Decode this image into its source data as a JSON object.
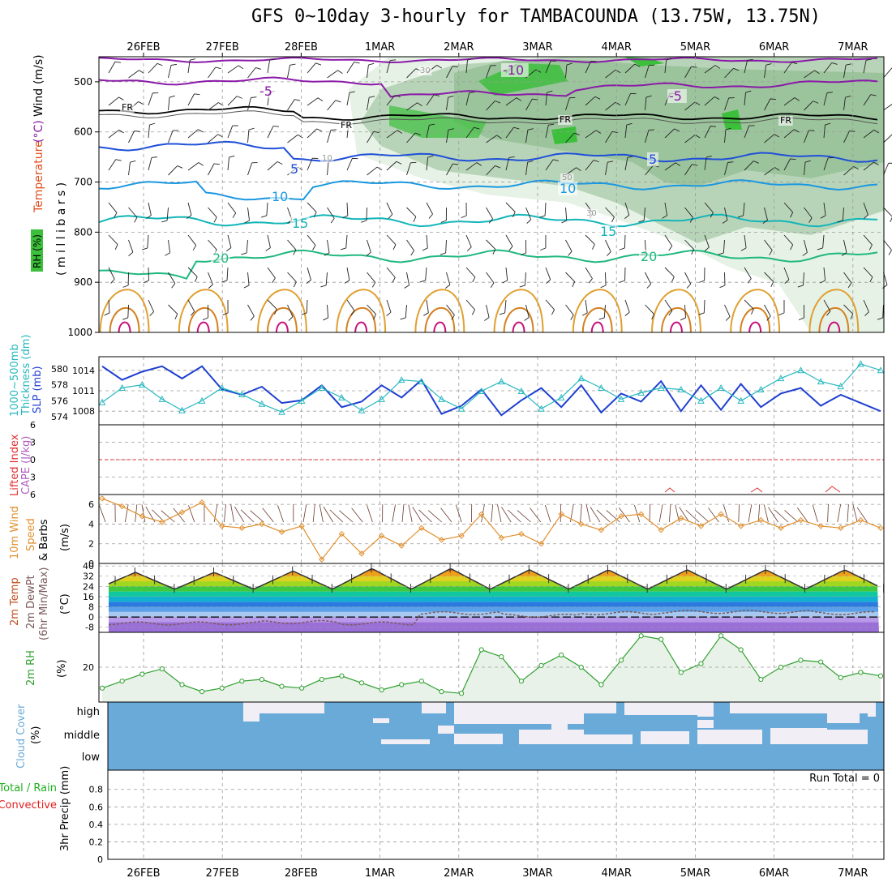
{
  "title": "GFS 0~10day 3-hourly for TAMBACOUNDA (13.75W, 13.75N)",
  "colors": {
    "frame": "#000000",
    "grid": "#9a9a9a",
    "temp_neg": "#8a1aa8",
    "temp_fr": "#000000",
    "temp_5": "#1f4fd8",
    "temp_10": "#1a98e0",
    "temp_15": "#12b5b8",
    "temp_20": "#20b880",
    "temp_warm": "#e0a030",
    "temp_hot": "#c8107a",
    "rh_light": "#e6f2e6",
    "rh_mid": "#b8d4b8",
    "rh_dark": "#9cc49c",
    "rh_green": "#3cc03c",
    "slp": "#1f3fd0",
    "thickness": "#28b8c0",
    "lifted": "#e03030",
    "cape": "#b060c0",
    "wind10": "#e09030",
    "barb": "#6a3a2a",
    "dewpt": "#7a5a5a",
    "rh2m": "#30a030",
    "rh2m_fill": "#e8f2e8",
    "cloud": "#6aaad8",
    "cloud_clear": "#f2eef6",
    "precip_total": "#20b020",
    "precip_conv": "#e02020"
  },
  "dates": [
    "26FEB",
    "27FEB",
    "28FEB",
    "1MAR",
    "2MAR",
    "3MAR",
    "4MAR",
    "5MAR",
    "6MAR",
    "7MAR"
  ],
  "panels": {
    "upper": {
      "labels": {
        "rh": "RH (%)",
        "temperature": "Temperature",
        "temp_unit": "(°C)",
        "wind": "Wind",
        "wind_unit": "(m/s)",
        "pressure": "( m i l l i b a r s )"
      },
      "y_ticks": [
        "500",
        "600",
        "700",
        "800",
        "900",
        "1000"
      ],
      "contour_labels": [
        "-10",
        "-5",
        "-5",
        "FR",
        "FR",
        "FR",
        "FR",
        "5",
        "5",
        "10",
        "10",
        "15",
        "15",
        "20",
        "20",
        "30",
        "30",
        "50",
        "10"
      ]
    },
    "slp": {
      "labels": {
        "thickness": "Thickness (dm)",
        "thickness_title": "1000~500mb",
        "slp": "SLP (mb)"
      },
      "thickness_ticks": [
        "580",
        "578",
        "576",
        "574"
      ],
      "slp_ticks": [
        "1014",
        "1011",
        "1008"
      ]
    },
    "stability": {
      "labels": {
        "lifted": "Lifted Index",
        "cape": "CAPE (J/kg)"
      },
      "y_ticks": [
        "6",
        "3",
        "0",
        "-3",
        "-6"
      ]
    },
    "wind10": {
      "labels": {
        "title": "10m Wind",
        "speed": "Speed",
        "barbs": "& Barbs",
        "unit": "(m/s)"
      },
      "y_ticks": [
        "6",
        "4",
        "2",
        "0"
      ]
    },
    "temp2m": {
      "labels": {
        "temp": "2m Temp",
        "dewpt": "2m DewPt",
        "minmax": "(6hr Min/Max)",
        "unit": "(°C)"
      },
      "y_ticks": [
        "40",
        "32",
        "24",
        "16",
        "8",
        "0",
        "-8"
      ]
    },
    "rh2m": {
      "labels": {
        "title": "2m RH",
        "unit": "(%)"
      },
      "y_ticks": [
        "20"
      ]
    },
    "cloud": {
      "labels": {
        "title": "Cloud Cover",
        "unit": "(%)"
      },
      "levels": [
        "high",
        "middle",
        "low"
      ]
    },
    "precip": {
      "labels": {
        "total": "Total / Rain",
        "convective": "Convective",
        "axis": "3hr Precip (mm)"
      },
      "y_ticks": [
        "0.8",
        "0.6",
        "0.4",
        "0.2",
        "0"
      ],
      "run_total": "Run Total = 0"
    }
  },
  "chart_data": [
    {
      "type": "line",
      "panel": "sea level pressure and 1000-500mb thickness",
      "x": [
        "25FEB 12Z",
        "25FEB 18Z",
        "26FEB 00Z",
        "26FEB 06Z",
        "26FEB 12Z",
        "26FEB 18Z",
        "27FEB 00Z",
        "27FEB 06Z",
        "27FEB 12Z",
        "27FEB 18Z",
        "28FEB 00Z",
        "28FEB 06Z",
        "28FEB 12Z",
        "28FEB 18Z",
        "1MAR 00Z",
        "1MAR 06Z",
        "1MAR 12Z",
        "1MAR 18Z",
        "2MAR 00Z",
        "2MAR 06Z",
        "2MAR 12Z",
        "2MAR 18Z",
        "3MAR 00Z",
        "3MAR 06Z",
        "3MAR 12Z",
        "3MAR 18Z",
        "4MAR 00Z",
        "4MAR 06Z",
        "4MAR 12Z",
        "4MAR 18Z",
        "5MAR 00Z",
        "5MAR 06Z",
        "5MAR 12Z",
        "5MAR 18Z",
        "6MAR 00Z",
        "6MAR 06Z",
        "6MAR 12Z",
        "6MAR 18Z",
        "7MAR 00Z",
        "7MAR 06Z"
      ],
      "series": [
        {
          "name": "SLP (mb)",
          "values": [
            1014.6,
            1012.6,
            1013.8,
            1014.6,
            1012.8,
            1014.6,
            1011.2,
            1010.4,
            1011.6,
            1009.2,
            1009.6,
            1011.8,
            1008.6,
            1009.4,
            1011.8,
            1010.0,
            1012.6,
            1007.6,
            1008.8,
            1011.2,
            1007.4,
            1009.6,
            1011.4,
            1008.6,
            1011.8,
            1007.8,
            1010.6,
            1009.4,
            1012.4,
            1008.0,
            1011.8,
            1008.2,
            1012.0,
            1008.6,
            1010.6,
            1011.4,
            1008.8,
            1010.4,
            1009.2,
            1008.0
          ]
        },
        {
          "name": "Thickness (dm)",
          "values": [
            575.8,
            577.6,
            578.0,
            576.2,
            574.8,
            576.0,
            577.6,
            576.8,
            575.6,
            574.6,
            576.0,
            577.6,
            576.4,
            574.8,
            576.2,
            578.6,
            578.4,
            576.2,
            575.0,
            577.2,
            578.4,
            577.2,
            575.0,
            576.4,
            578.8,
            577.6,
            576.2,
            577.0,
            577.6,
            577.4,
            576.0,
            577.6,
            576.0,
            577.4,
            578.8,
            579.8,
            578.4,
            577.8,
            580.6,
            579.8
          ]
        }
      ],
      "ylim": [
        1006,
        1016
      ]
    },
    {
      "type": "line",
      "panel": "10m wind speed",
      "x": [
        "25FEB 12Z",
        "25FEB 18Z",
        "26FEB 00Z",
        "26FEB 06Z",
        "26FEB 12Z",
        "26FEB 18Z",
        "27FEB 00Z",
        "27FEB 06Z",
        "27FEB 12Z",
        "27FEB 18Z",
        "28FEB 00Z",
        "28FEB 06Z",
        "28FEB 12Z",
        "28FEB 18Z",
        "1MAR 00Z",
        "1MAR 06Z",
        "1MAR 12Z",
        "1MAR 18Z",
        "2MAR 00Z",
        "2MAR 06Z",
        "2MAR 12Z",
        "2MAR 18Z",
        "3MAR 00Z",
        "3MAR 06Z",
        "3MAR 12Z",
        "3MAR 18Z",
        "4MAR 00Z",
        "4MAR 06Z",
        "4MAR 12Z",
        "4MAR 18Z",
        "5MAR 00Z",
        "5MAR 06Z",
        "5MAR 12Z",
        "5MAR 18Z",
        "6MAR 00Z",
        "6MAR 06Z",
        "6MAR 12Z",
        "6MAR 18Z",
        "7MAR 00Z",
        "7MAR 06Z"
      ],
      "series": [
        {
          "name": "Speed",
          "values": [
            6.6,
            5.8,
            4.8,
            4.2,
            5.2,
            6.2,
            3.8,
            3.6,
            4.0,
            3.2,
            3.8,
            0.4,
            3.0,
            1.0,
            2.8,
            1.8,
            3.6,
            2.4,
            2.8,
            5.0,
            2.6,
            3.0,
            2.0,
            5.0,
            4.0,
            3.4,
            4.8,
            5.0,
            3.4,
            4.6,
            3.8,
            5.0,
            3.8,
            4.4,
            3.6,
            4.4,
            3.8,
            3.6,
            4.4,
            3.6
          ]
        }
      ],
      "ylim": [
        0,
        7
      ]
    },
    {
      "type": "line",
      "panel": "2m temperature",
      "x": [
        "26FEB",
        "27FEB",
        "28FEB",
        "1MAR",
        "2MAR",
        "3MAR",
        "4MAR",
        "5MAR",
        "6MAR",
        "7MAR"
      ],
      "series": [
        {
          "name": "2m Temp max",
          "values": [
            35,
            35,
            36,
            38,
            38,
            37,
            37,
            37,
            37,
            37
          ]
        },
        {
          "name": "2m DewPt",
          "values": [
            -5,
            -5,
            -4,
            -5,
            3,
            1,
            3,
            4,
            4,
            3
          ]
        }
      ],
      "ylim": [
        -12,
        42
      ]
    },
    {
      "type": "area",
      "panel": "2m relative humidity",
      "x": [
        "25FEB 12Z",
        "25FEB 18Z",
        "26FEB 00Z",
        "26FEB 06Z",
        "26FEB 12Z",
        "26FEB 18Z",
        "27FEB 00Z",
        "27FEB 06Z",
        "27FEB 12Z",
        "27FEB 18Z",
        "28FEB 00Z",
        "28FEB 06Z",
        "28FEB 12Z",
        "28FEB 18Z",
        "1MAR 00Z",
        "1MAR 06Z",
        "1MAR 12Z",
        "1MAR 18Z",
        "2MAR 00Z",
        "2MAR 06Z",
        "2MAR 12Z",
        "2MAR 18Z",
        "3MAR 00Z",
        "3MAR 06Z",
        "3MAR 12Z",
        "3MAR 18Z",
        "4MAR 00Z",
        "4MAR 06Z",
        "4MAR 12Z",
        "4MAR 18Z",
        "5MAR 00Z",
        "5MAR 06Z",
        "5MAR 12Z",
        "5MAR 18Z",
        "6MAR 00Z",
        "6MAR 06Z",
        "6MAR 12Z",
        "6MAR 18Z",
        "7MAR 00Z",
        "7MAR 06Z"
      ],
      "series": [
        {
          "name": "2m RH",
          "values": [
            8,
            12,
            16,
            19,
            10,
            6,
            8,
            12,
            13,
            9,
            8,
            13,
            15,
            11,
            7,
            10,
            12,
            6,
            5,
            30,
            26,
            12,
            21,
            27,
            20,
            10,
            24,
            38,
            36,
            17,
            22,
            38,
            30,
            13,
            20,
            24,
            23,
            14,
            17,
            15
          ]
        }
      ],
      "ylim": [
        0,
        40
      ]
    },
    {
      "type": "bar",
      "panel": "3hr precipitation",
      "x": [
        "26FEB",
        "27FEB",
        "28FEB",
        "1MAR",
        "2MAR",
        "3MAR",
        "4MAR",
        "5MAR",
        "6MAR",
        "7MAR"
      ],
      "series": [
        {
          "name": "Total / Rain",
          "values": [
            0,
            0,
            0,
            0,
            0,
            0,
            0,
            0,
            0,
            0
          ]
        },
        {
          "name": "Convective",
          "values": [
            0,
            0,
            0,
            0,
            0,
            0,
            0,
            0,
            0,
            0
          ]
        }
      ],
      "ylim": [
        0,
        1
      ]
    }
  ]
}
